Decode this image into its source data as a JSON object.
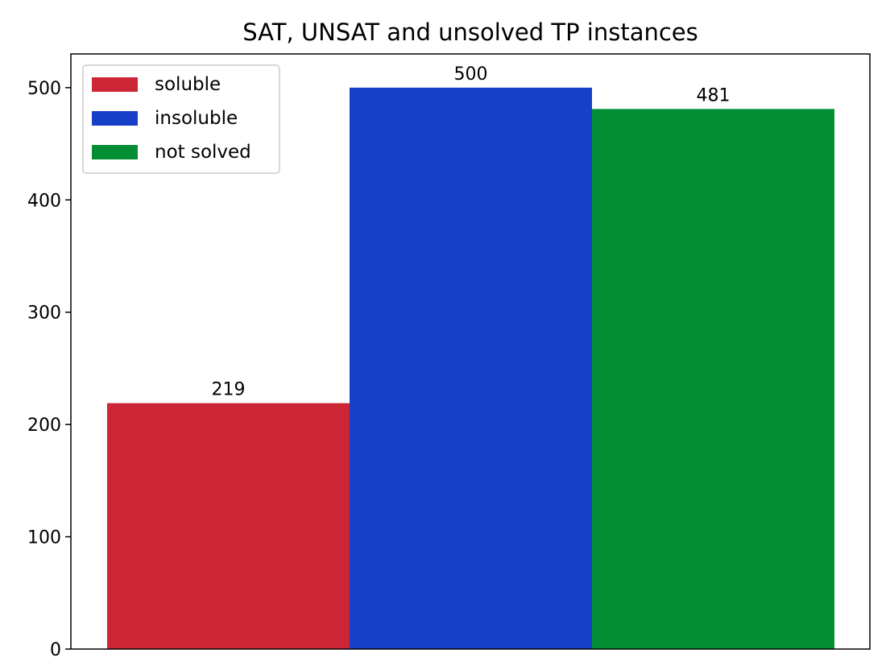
{
  "chart_data": {
    "type": "bar",
    "title": "SAT, UNSAT and unsolved TP instances",
    "xlabel": "",
    "ylabel": "",
    "ylim": [
      0,
      530
    ],
    "yticks": [
      0,
      100,
      200,
      300,
      400,
      500
    ],
    "grid": false,
    "legend_position": "top-left",
    "series": [
      {
        "name": "soluble",
        "value": 219,
        "color": "#cb2536"
      },
      {
        "name": "insoluble",
        "value": 500,
        "color": "#183fc7"
      },
      {
        "name": "not solved",
        "value": 481,
        "color": "#038e33"
      }
    ]
  }
}
